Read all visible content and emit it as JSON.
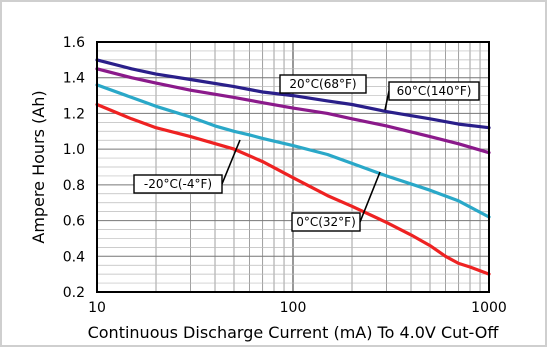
{
  "chart_data": {
    "type": "line",
    "xlabel": "Continuous Discharge Current (mA) To 4.0V Cut-Off",
    "ylabel": "Ampere Hours (Ah)",
    "xscale": "log",
    "xlim": [
      10,
      1000
    ],
    "ylim": [
      0.2,
      1.6
    ],
    "grid": true,
    "xticks": [
      "10",
      "100",
      "1000"
    ],
    "yticks": [
      "0.2",
      "0.4",
      "0.6",
      "0.8",
      "1.0",
      "1.2",
      "1.4",
      "1.6"
    ],
    "series": [
      {
        "name": "20°C(68°F)",
        "color": "#2a1f8a",
        "x": [
          10,
          15,
          20,
          30,
          50,
          70,
          100,
          150,
          200,
          300,
          500,
          700,
          1000
        ],
        "y": [
          1.5,
          1.45,
          1.42,
          1.39,
          1.35,
          1.32,
          1.3,
          1.27,
          1.25,
          1.21,
          1.17,
          1.14,
          1.12
        ]
      },
      {
        "name": "60°C(140°F)",
        "color": "#8b1a8b",
        "x": [
          10,
          15,
          20,
          30,
          50,
          70,
          100,
          150,
          200,
          300,
          500,
          700,
          1000
        ],
        "y": [
          1.45,
          1.4,
          1.37,
          1.33,
          1.29,
          1.26,
          1.23,
          1.2,
          1.17,
          1.13,
          1.07,
          1.03,
          0.98
        ]
      },
      {
        "name": "-20°C(-4°F)",
        "color": "#2aa8c8",
        "x": [
          10,
          15,
          20,
          30,
          40,
          50,
          60,
          70,
          100,
          150,
          200,
          300,
          500,
          700,
          1000
        ],
        "y": [
          1.36,
          1.29,
          1.24,
          1.18,
          1.13,
          1.1,
          1.08,
          1.06,
          1.02,
          0.97,
          0.92,
          0.85,
          0.77,
          0.71,
          0.62
        ]
      },
      {
        "name": "0°C(32°F)",
        "color": "#ee2222",
        "x": [
          10,
          15,
          20,
          30,
          50,
          70,
          100,
          150,
          200,
          300,
          400,
          500,
          600,
          700,
          800,
          1000
        ],
        "y": [
          1.25,
          1.17,
          1.12,
          1.07,
          1.0,
          0.93,
          0.84,
          0.74,
          0.68,
          0.59,
          0.52,
          0.46,
          0.4,
          0.36,
          0.34,
          0.3
        ]
      }
    ],
    "annotations": [
      {
        "text": "20°C(68°F)",
        "series": "20°C(68°F)"
      },
      {
        "text": "60°C(140°F)",
        "series": "60°C(140°F)"
      },
      {
        "text": "-20°C(-4°F)",
        "series": "-20°C(-4°F)"
      },
      {
        "text": "0°C(32°F)",
        "series": "0°C(32°F)"
      }
    ]
  }
}
